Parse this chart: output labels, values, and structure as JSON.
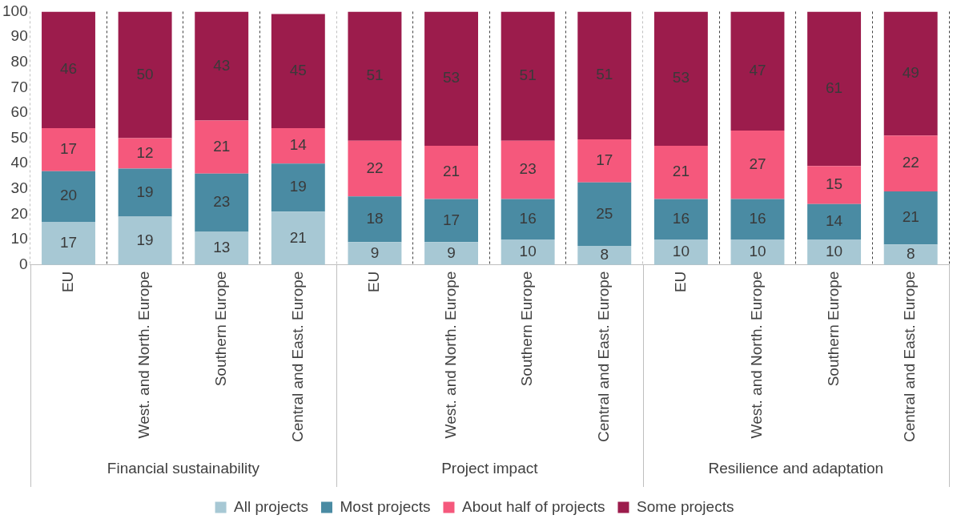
{
  "chart_data": {
    "type": "bar",
    "stacked": true,
    "categories": [
      "EU",
      "West. and North. Europe",
      "Southern Europe",
      "Central and East. Europe",
      "EU",
      "West. and North. Europe",
      "Southern Europe",
      "Central and East. Europe",
      "EU",
      "West. and North. Europe",
      "Southern Europe",
      "Central and East. Europe"
    ],
    "series": [
      {
        "name": "All projects",
        "color": "#a7c8d4",
        "values": [
          17,
          19,
          13,
          21,
          9,
          9,
          10,
          7.5,
          10,
          10,
          10,
          8
        ],
        "value_labels": [
          "17",
          "19",
          "13",
          "21",
          "9",
          "9",
          "10",
          "8",
          "10",
          "10",
          "10",
          "8"
        ]
      },
      {
        "name": "Most projects",
        "color": "#4a8ba3",
        "values": [
          20,
          19,
          23,
          19,
          18,
          17,
          16,
          25,
          16,
          16,
          14,
          21
        ],
        "value_labels": [
          "20",
          "19",
          "23",
          "19",
          "18",
          "17",
          "16",
          "25",
          "16",
          "16",
          "14",
          "21"
        ]
      },
      {
        "name": "About half of projects",
        "color": "#f5587c",
        "values": [
          17,
          12,
          21,
          14,
          22,
          21,
          23,
          17,
          21,
          27,
          15,
          22
        ],
        "value_labels": [
          "17",
          "12",
          "21",
          "14",
          "22",
          "21",
          "23",
          "17",
          "21",
          "27",
          "15",
          "22"
        ]
      },
      {
        "name": "Some projects",
        "color": "#9c1c4c",
        "values": [
          46,
          50,
          43,
          45,
          51,
          53,
          51,
          50.5,
          53,
          47,
          61,
          49
        ],
        "value_labels": [
          "46",
          "50",
          "43",
          "45",
          "51",
          "53",
          "51",
          "51",
          "53",
          "47",
          "61",
          "49"
        ]
      }
    ],
    "annotations": [
      "Financial sustainability",
      "Project impact",
      "Resilience and adaptation"
    ],
    "ylim": [
      0,
      100
    ],
    "yticks": [
      0,
      10,
      20,
      30,
      40,
      50,
      60,
      70,
      80,
      90,
      100
    ],
    "grid": "x",
    "legend": "bottom"
  }
}
